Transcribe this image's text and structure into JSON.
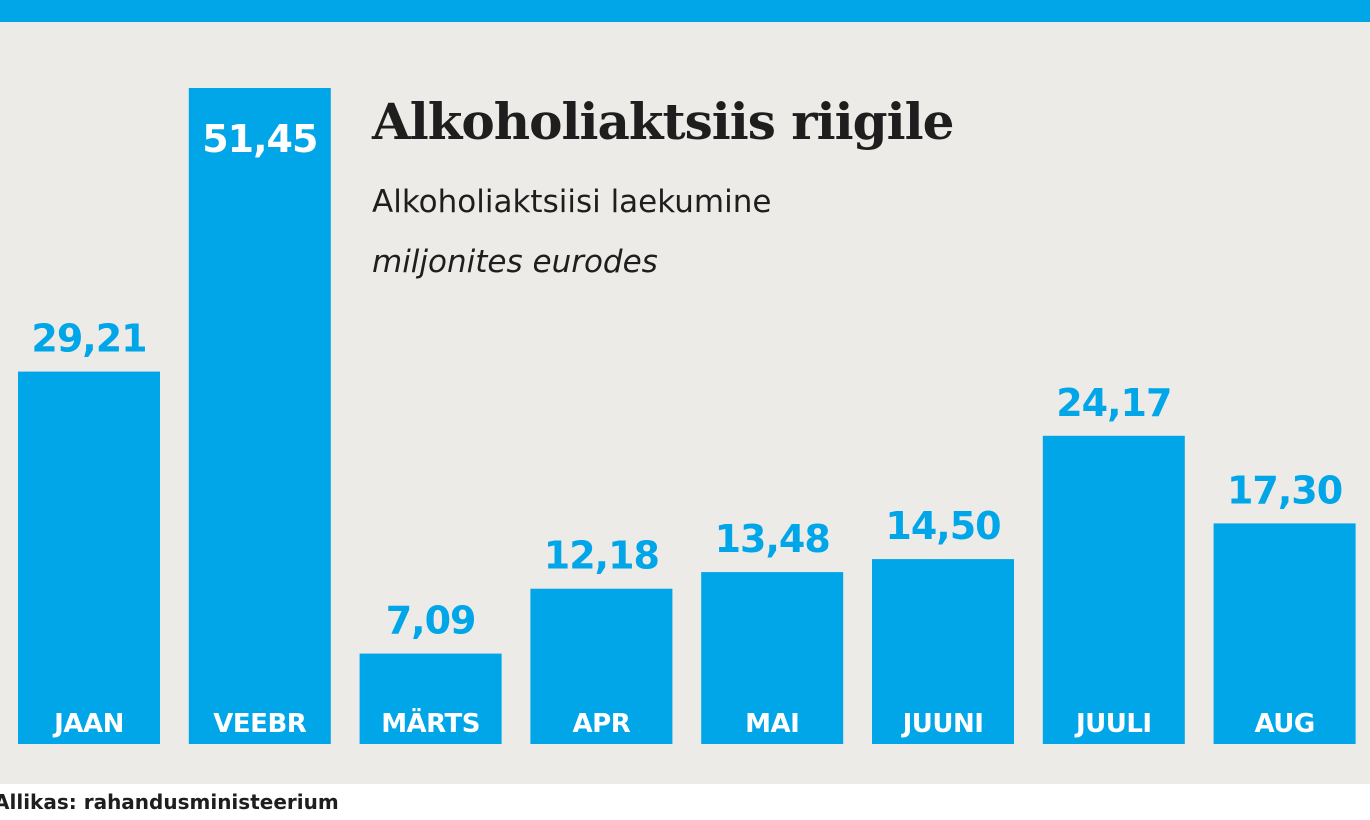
{
  "colors": {
    "accent": "#00a6e8",
    "panel_background": "#ecebe8",
    "page_background": "#ffffff",
    "text_dark": "#1e1e1e",
    "bar_label": "#ffffff"
  },
  "source": "Allikas: rahandusministeerium",
  "chart_data": {
    "type": "bar",
    "title": "Alkoholiaktsiis riigile",
    "subtitle": "Alkoholiaktsiisi laekumine",
    "unit_label": "miljonites eurodes",
    "xlabel": "",
    "ylabel": "",
    "categories": [
      "JAAN",
      "VEEBR",
      "MÄRTS",
      "APR",
      "MAI",
      "JUUNI",
      "JUULI",
      "AUG"
    ],
    "values": [
      29.21,
      51.45,
      7.09,
      12.18,
      13.48,
      14.5,
      24.17,
      17.3
    ],
    "value_labels": [
      "29,21",
      "51,45",
      "7,09",
      "12,18",
      "13,48",
      "14,50",
      "24,17",
      "17,30"
    ],
    "grid": false,
    "legend": "none"
  }
}
